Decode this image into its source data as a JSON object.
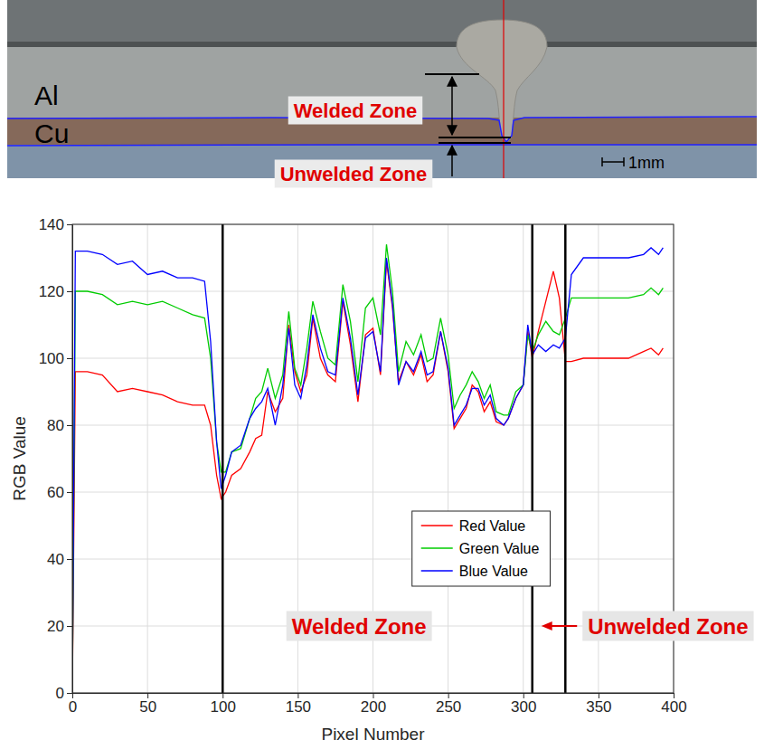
{
  "image": {
    "layers": [
      "Al",
      "Cu"
    ],
    "zones": [
      "Welded Zone",
      "Unwelded Zone"
    ],
    "scale_bar": "1mm"
  },
  "chart_data": {
    "type": "line",
    "x_label": "Pixel Number",
    "y_label": "RGB Value",
    "x": [
      0,
      2,
      10,
      20,
      30,
      40,
      50,
      60,
      70,
      80,
      88,
      92,
      96,
      99,
      102,
      106,
      112,
      118,
      122,
      126,
      130,
      135,
      140,
      144,
      148,
      152,
      156,
      160,
      165,
      170,
      175,
      180,
      185,
      190,
      195,
      200,
      205,
      209,
      213,
      217,
      222,
      227,
      232,
      236,
      240,
      245,
      250,
      254,
      258,
      262,
      266,
      270,
      274,
      278,
      282,
      287,
      290,
      295,
      300,
      303,
      306,
      310,
      315,
      320,
      324,
      328,
      332,
      340,
      350,
      370,
      380,
      385,
      390,
      393
    ],
    "series": [
      {
        "name": "Red Value",
        "color": "#ff0000",
        "values": [
          0,
          96,
          96,
          95,
          90,
          91,
          90,
          89,
          87,
          86,
          86,
          80,
          65,
          58,
          60,
          65,
          67,
          72,
          76,
          77,
          90,
          84,
          88,
          110,
          96,
          90,
          95,
          112,
          100,
          95,
          93,
          117,
          104,
          87,
          107,
          109,
          95,
          129,
          115,
          93,
          99,
          95,
          101,
          93,
          95,
          108,
          96,
          79,
          82,
          85,
          92,
          90,
          84,
          87,
          81,
          80,
          82,
          88,
          92,
          108,
          100,
          108,
          117,
          126,
          118,
          99,
          99,
          100,
          100,
          100,
          102,
          103,
          101,
          103
        ]
      },
      {
        "name": "Green Value",
        "color": "#00cc00",
        "values": [
          0,
          120,
          120,
          119,
          116,
          117,
          116,
          117,
          115,
          113,
          112,
          100,
          75,
          66,
          66,
          72,
          73,
          82,
          88,
          90,
          97,
          88,
          95,
          114,
          97,
          92,
          103,
          117,
          108,
          100,
          98,
          122,
          111,
          93,
          115,
          118,
          107,
          134,
          120,
          96,
          105,
          101,
          107,
          99,
          100,
          112,
          101,
          85,
          89,
          92,
          96,
          93,
          88,
          92,
          84,
          83,
          83,
          90,
          92,
          107,
          102,
          107,
          111,
          108,
          107,
          112,
          118,
          118,
          118,
          118,
          119,
          121,
          119,
          121
        ]
      },
      {
        "name": "Blue Value",
        "color": "#0000ff",
        "values": [
          0,
          132,
          132,
          131,
          128,
          129,
          125,
          126,
          124,
          124,
          123,
          105,
          75,
          61,
          65,
          72,
          74,
          82,
          85,
          87,
          91,
          80,
          92,
          109,
          92,
          88,
          98,
          113,
          103,
          96,
          95,
          118,
          106,
          89,
          106,
          108,
          96,
          130,
          116,
          92,
          99,
          96,
          102,
          95,
          96,
          108,
          97,
          80,
          83,
          86,
          91,
          91,
          86,
          89,
          82,
          80,
          82,
          88,
          92,
          110,
          101,
          104,
          102,
          104,
          103,
          106,
          125,
          130,
          130,
          130,
          131,
          133,
          131,
          133
        ]
      }
    ],
    "xlim": [
      0,
      400
    ],
    "ylim": [
      0,
      140
    ],
    "xticks": [
      0,
      50,
      100,
      150,
      200,
      250,
      300,
      350,
      400
    ],
    "yticks": [
      0,
      20,
      40,
      60,
      80,
      100,
      120,
      140
    ],
    "grid": true,
    "legend": "lower center",
    "vlines": [
      100,
      306,
      328
    ],
    "annotations": [
      {
        "text": "Welded Zone",
        "x": 146,
        "y": 20
      },
      {
        "text": "Unwelded Zone",
        "x": 343,
        "y": 20,
        "arrow_to": 312
      }
    ]
  }
}
